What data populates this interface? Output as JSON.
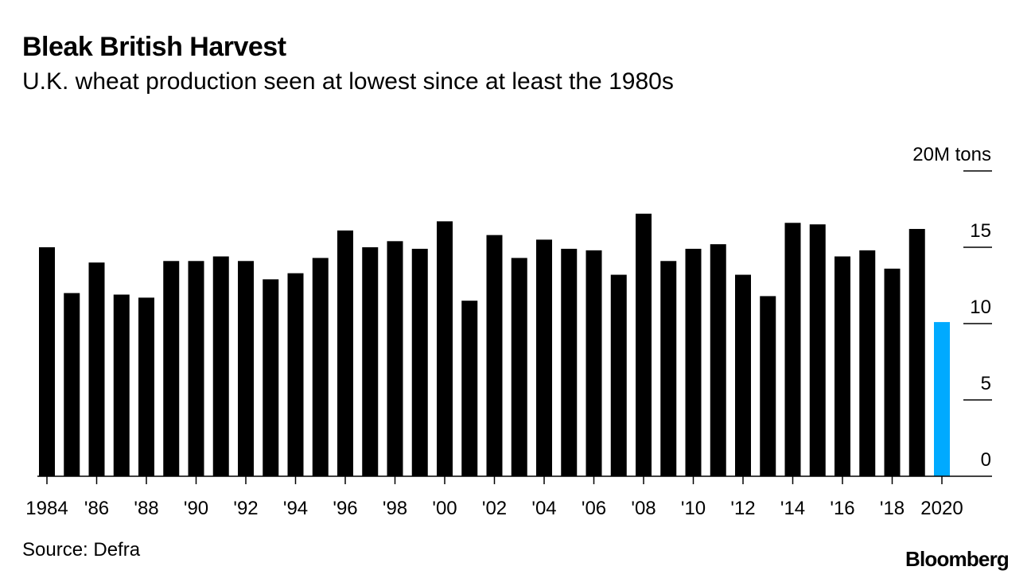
{
  "header": {
    "title": "Bleak British Harvest",
    "subtitle": "U.K. wheat production seen at lowest since at least the 1980s"
  },
  "footer": {
    "source": "Source: Defra",
    "brand": "Bloomberg"
  },
  "colors": {
    "bar": "#000000",
    "highlight": "#00aaff",
    "axis": "#000000"
  },
  "chart_data": {
    "type": "bar",
    "title": "Bleak British Harvest",
    "subtitle": "U.K. wheat production seen at lowest since at least the 1980s",
    "xlabel": "",
    "ylabel": "M tons",
    "unit_label": "20M tons",
    "ylim": [
      0,
      20
    ],
    "y_ticks": [
      0,
      5,
      10,
      15,
      20
    ],
    "y_tick_labels": [
      "0",
      "5",
      "10",
      "15",
      "20M tons"
    ],
    "y_axis_position": "right",
    "grid": false,
    "years": [
      1984,
      1985,
      1986,
      1987,
      1988,
      1989,
      1990,
      1991,
      1992,
      1993,
      1994,
      1995,
      1996,
      1997,
      1998,
      1999,
      2000,
      2001,
      2002,
      2003,
      2004,
      2005,
      2006,
      2007,
      2008,
      2009,
      2010,
      2011,
      2012,
      2013,
      2014,
      2015,
      2016,
      2017,
      2018,
      2019,
      2020
    ],
    "values": [
      15.0,
      12.0,
      14.0,
      11.9,
      11.7,
      14.1,
      14.1,
      14.4,
      14.1,
      12.9,
      13.3,
      14.3,
      16.1,
      15.0,
      15.4,
      14.9,
      16.7,
      11.5,
      15.8,
      14.3,
      15.5,
      14.9,
      14.8,
      13.2,
      17.2,
      14.1,
      14.9,
      15.2,
      13.2,
      11.8,
      16.6,
      16.5,
      14.4,
      14.8,
      13.6,
      16.2,
      10.1
    ],
    "highlight_index": 36,
    "x_tick_indices": [
      0,
      2,
      4,
      6,
      8,
      10,
      12,
      14,
      16,
      18,
      20,
      22,
      24,
      26,
      28,
      30,
      32,
      34,
      36
    ],
    "x_tick_labels": [
      "1984",
      "'86",
      "'88",
      "'90",
      "'92",
      "'94",
      "'96",
      "'98",
      "'00",
      "'02",
      "'04",
      "'06",
      "'08",
      "'10",
      "'12",
      "'14",
      "'16",
      "'18",
      "2020"
    ]
  }
}
